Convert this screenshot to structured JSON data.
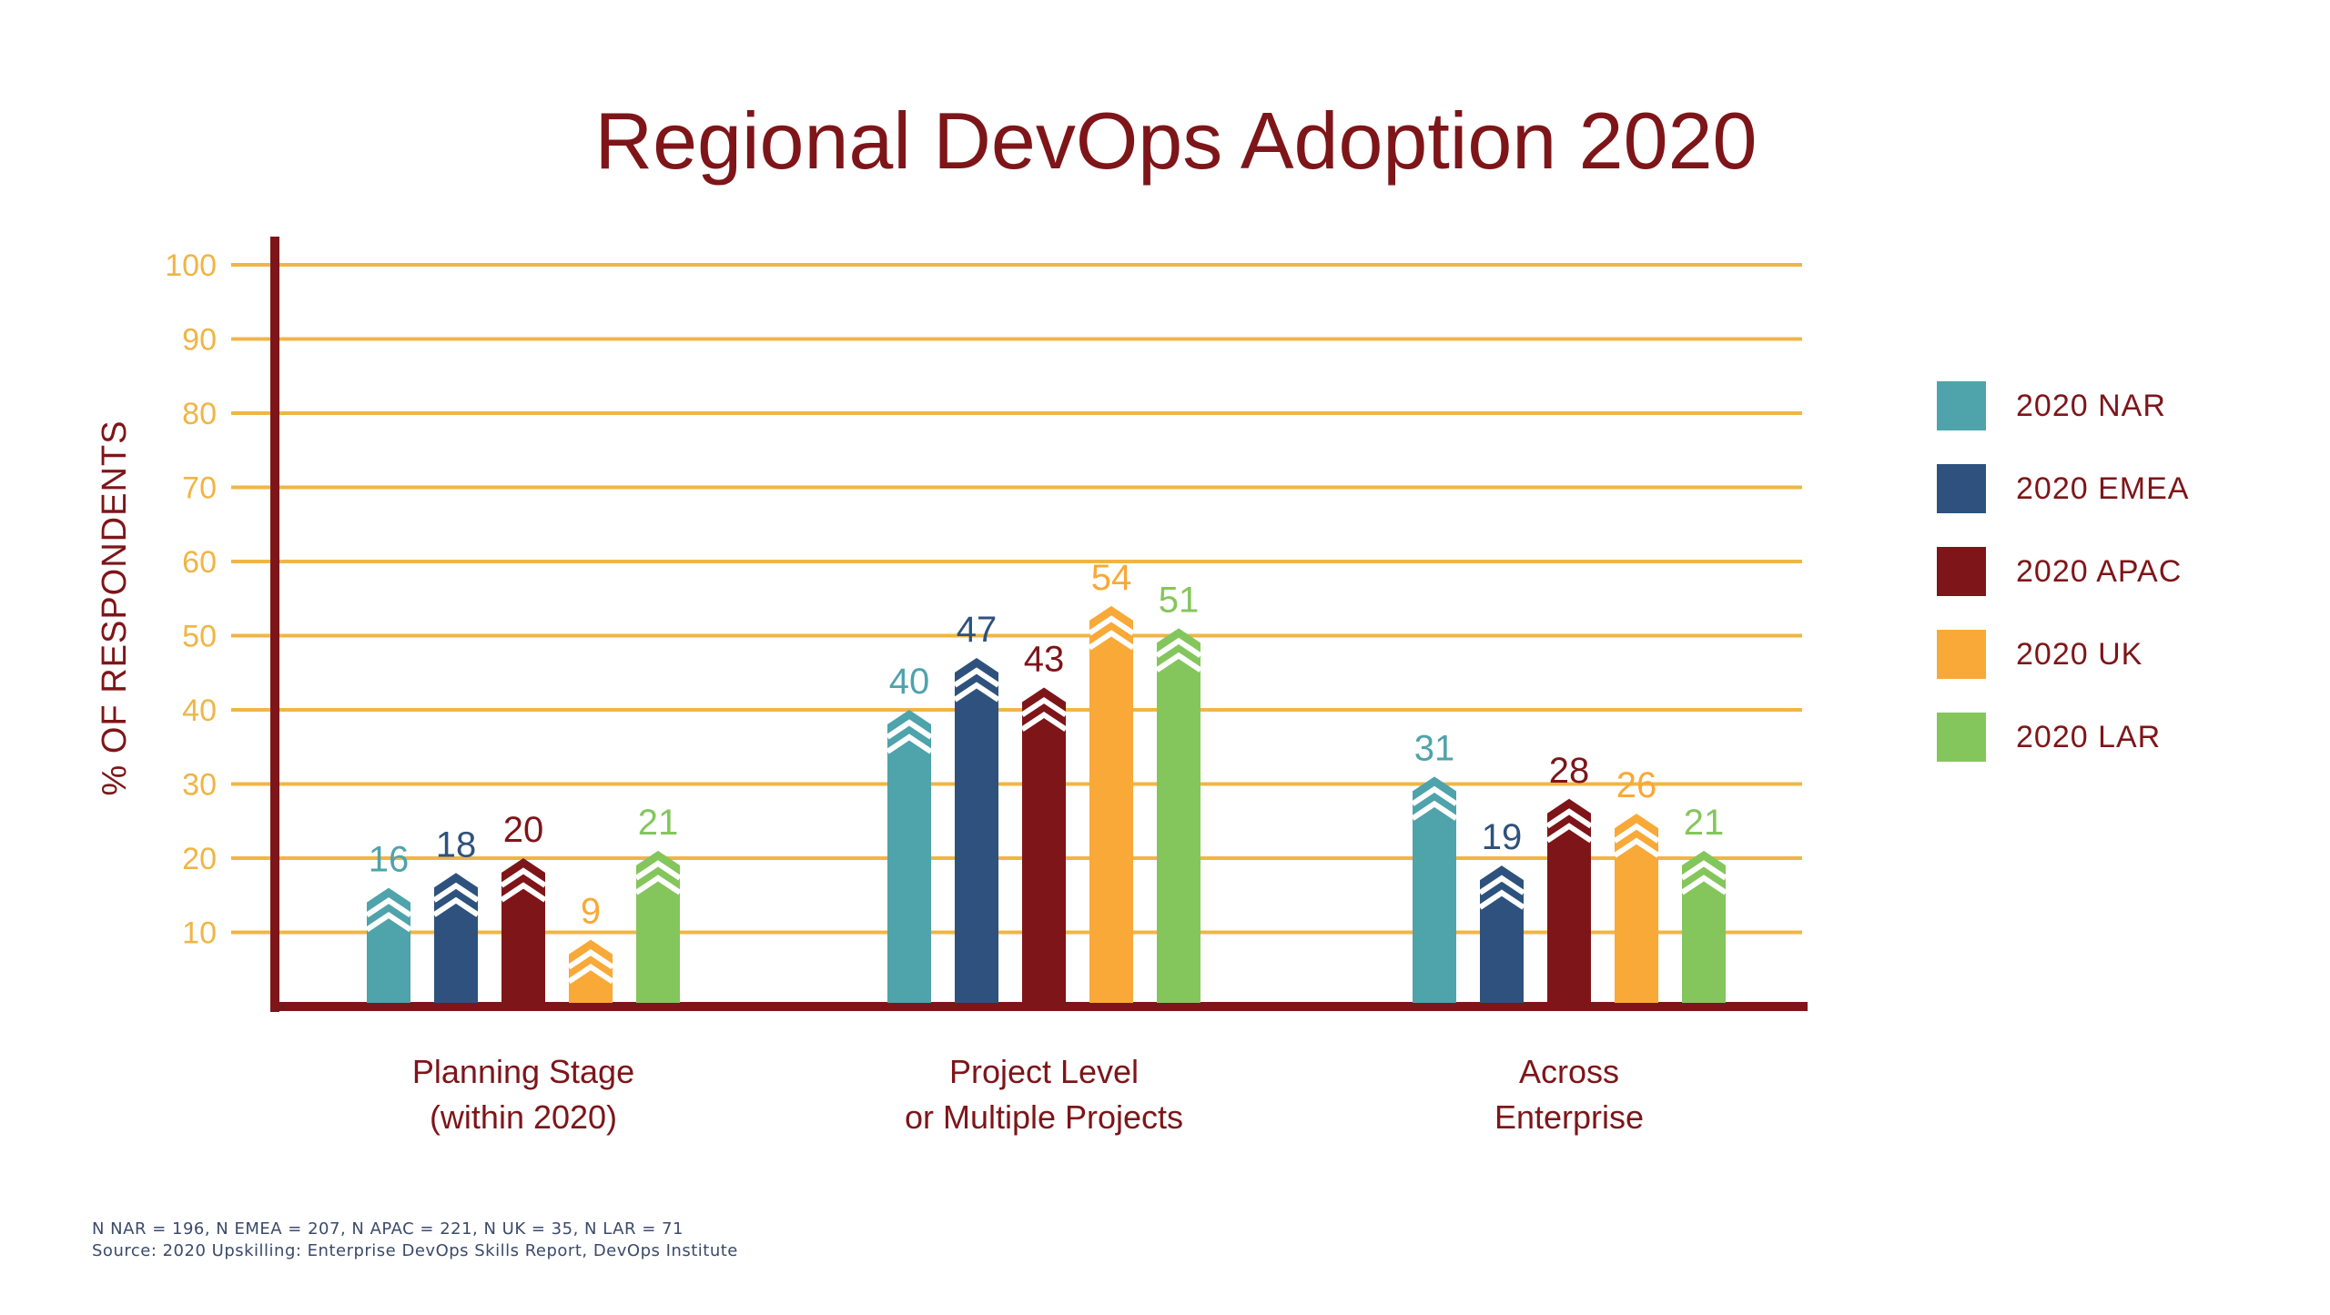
{
  "chart_data": {
    "type": "bar",
    "title": "Regional DevOps Adoption 2020",
    "ylabel": "% OF RESPONDENTS",
    "xlabel": "",
    "ylim": [
      0,
      100
    ],
    "yticks": [
      10,
      20,
      30,
      40,
      50,
      60,
      70,
      80,
      90,
      100
    ],
    "grid": true,
    "legend_position": "right",
    "categories": [
      [
        "Planning Stage",
        "(within 2020)"
      ],
      [
        "Project Level",
        "or Multiple Projects"
      ],
      [
        "Across",
        "Enterprise"
      ]
    ],
    "series": [
      {
        "name": "2020 NAR",
        "color": "#4fa3ab",
        "values": [
          16,
          40,
          31
        ]
      },
      {
        "name": "2020 EMEA",
        "color": "#2e527d",
        "values": [
          18,
          47,
          19
        ]
      },
      {
        "name": "2020 APAC",
        "color": "#7e1519",
        "values": [
          20,
          43,
          28
        ]
      },
      {
        "name": "2020 UK",
        "color": "#f9a937",
        "values": [
          9,
          54,
          26
        ]
      },
      {
        "name": "2020 LAR",
        "color": "#84c65c",
        "values": [
          21,
          51,
          21
        ]
      }
    ],
    "colors": {
      "title": "#7e1519",
      "axis": "#7e1519",
      "grid": "#f0b545",
      "tick_label": "#f0b545",
      "category_label": "#7e1519",
      "legend_label": "#7e1519"
    }
  },
  "footnotes": {
    "sample_sizes": "N NAR = 196, N EMEA = 207, N APAC = 221, N UK = 35, N LAR = 71",
    "source": "Source: 2020 Upskilling: Enterprise DevOps Skills Report, DevOps Institute"
  }
}
